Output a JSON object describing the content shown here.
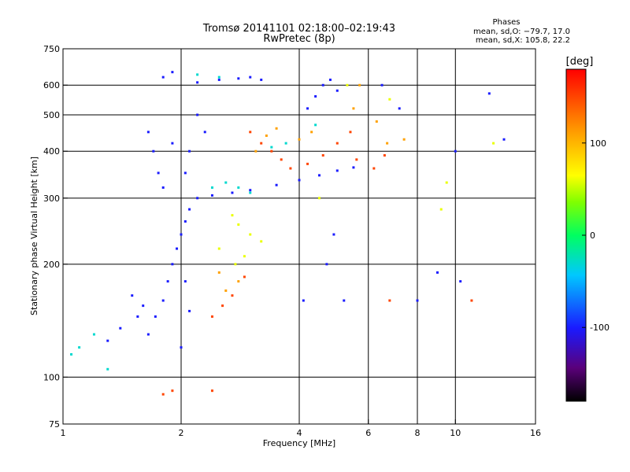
{
  "chart_data": {
    "type": "scatter",
    "title": "Tromsø 20141101 02:18:00–02:19:43",
    "subtitle": "RwPretec (8p)",
    "xlabel": "Frequency [MHz]",
    "ylabel": "Stationary phase Virtual Height [km]",
    "x_scale": "log",
    "y_scale": "log",
    "xlim": [
      1,
      16
    ],
    "ylim": [
      75,
      750
    ],
    "x_ticks": [
      1,
      2,
      4,
      6,
      8,
      10,
      16
    ],
    "y_ticks": [
      75,
      100,
      200,
      300,
      400,
      500,
      600,
      750
    ],
    "x_gridlines": [
      2,
      4,
      6,
      8,
      10
    ],
    "y_gridlines": [
      100,
      200,
      300,
      400,
      500,
      600
    ],
    "grid": true,
    "phases_box": {
      "heading": "Phases",
      "line_o": "mean, sd,O: −79.7, 17.0",
      "line_x": "mean, sd,X: 105.8, 22.2"
    },
    "colorbar": {
      "label": "[deg]",
      "range": [
        -180,
        180
      ],
      "ticks": [
        100,
        0,
        -100
      ],
      "colormap": "rainbow (black → purple → blue → cyan → green → yellow → orange → red)"
    },
    "series": [
      {
        "phase_deg": -100,
        "points": [
          [
            1.65,
            130
          ],
          [
            1.72,
            145
          ],
          [
            1.8,
            160
          ],
          [
            1.85,
            180
          ],
          [
            1.9,
            200
          ],
          [
            1.95,
            220
          ],
          [
            2.0,
            240
          ],
          [
            2.05,
            260
          ],
          [
            2.1,
            280
          ],
          [
            2.2,
            300
          ],
          [
            2.4,
            305
          ],
          [
            2.7,
            310
          ],
          [
            3.0,
            315
          ],
          [
            3.5,
            325
          ],
          [
            4.0,
            335
          ],
          [
            4.5,
            345
          ],
          [
            5.0,
            355
          ],
          [
            5.5,
            362
          ],
          [
            1.65,
            450
          ],
          [
            1.7,
            400
          ],
          [
            1.75,
            350
          ],
          [
            1.8,
            320
          ],
          [
            1.9,
            420
          ],
          [
            2.05,
            350
          ],
          [
            2.1,
            400
          ],
          [
            2.2,
            500
          ],
          [
            2.3,
            450
          ],
          [
            1.8,
            630
          ],
          [
            1.9,
            650
          ],
          [
            2.2,
            610
          ],
          [
            2.5,
            620
          ],
          [
            2.8,
            625
          ],
          [
            3.0,
            630
          ],
          [
            3.2,
            620
          ],
          [
            4.2,
            520
          ],
          [
            4.4,
            560
          ],
          [
            4.6,
            600
          ],
          [
            4.8,
            620
          ],
          [
            5.0,
            580
          ],
          [
            6.5,
            600
          ],
          [
            7.2,
            520
          ],
          [
            2.0,
            120
          ],
          [
            2.1,
            150
          ],
          [
            2.05,
            180
          ],
          [
            1.5,
            165
          ],
          [
            4.9,
            240
          ],
          [
            5.2,
            160
          ],
          [
            4.1,
            160
          ],
          [
            4.7,
            200
          ],
          [
            1.3,
            125
          ],
          [
            1.4,
            135
          ],
          [
            1.55,
            145
          ],
          [
            1.6,
            155
          ],
          [
            8.0,
            160
          ],
          [
            9.0,
            190
          ],
          [
            10.0,
            400
          ],
          [
            10.3,
            180
          ],
          [
            12.2,
            570
          ],
          [
            13.3,
            430
          ]
        ]
      },
      {
        "phase_deg": -30,
        "points": [
          [
            1.05,
            115
          ],
          [
            1.1,
            120
          ],
          [
            1.2,
            130
          ],
          [
            1.3,
            105
          ],
          [
            2.4,
            320
          ],
          [
            2.6,
            330
          ],
          [
            2.8,
            320
          ],
          [
            3.0,
            310
          ],
          [
            2.2,
            640
          ],
          [
            2.5,
            630
          ],
          [
            3.4,
            410
          ],
          [
            3.7,
            420
          ],
          [
            4.4,
            470
          ]
        ]
      },
      {
        "phase_deg": 60,
        "points": [
          [
            2.7,
            270
          ],
          [
            2.8,
            255
          ],
          [
            3.0,
            240
          ],
          [
            3.2,
            230
          ],
          [
            2.5,
            220
          ],
          [
            2.75,
            200
          ],
          [
            2.9,
            210
          ],
          [
            4.5,
            300
          ],
          [
            5.3,
            600
          ],
          [
            6.8,
            550
          ],
          [
            9.2,
            280
          ],
          [
            9.5,
            330
          ],
          [
            12.5,
            420
          ]
        ]
      },
      {
        "phase_deg": 110,
        "points": [
          [
            2.5,
            190
          ],
          [
            2.6,
            170
          ],
          [
            2.8,
            180
          ],
          [
            3.1,
            400
          ],
          [
            3.3,
            440
          ],
          [
            3.5,
            460
          ],
          [
            4.0,
            430
          ],
          [
            4.3,
            450
          ],
          [
            5.5,
            520
          ],
          [
            5.7,
            600
          ],
          [
            6.3,
            480
          ],
          [
            6.7,
            420
          ],
          [
            7.4,
            430
          ]
        ]
      },
      {
        "phase_deg": 150,
        "points": [
          [
            2.4,
            145
          ],
          [
            2.55,
            155
          ],
          [
            2.7,
            165
          ],
          [
            2.9,
            185
          ],
          [
            3.0,
            450
          ],
          [
            3.2,
            420
          ],
          [
            3.4,
            400
          ],
          [
            3.6,
            380
          ],
          [
            3.8,
            360
          ],
          [
            4.2,
            370
          ],
          [
            4.6,
            390
          ],
          [
            5.0,
            420
          ],
          [
            5.4,
            450
          ],
          [
            5.6,
            380
          ],
          [
            6.2,
            360
          ],
          [
            6.6,
            390
          ],
          [
            1.8,
            90
          ],
          [
            1.9,
            92
          ],
          [
            2.4,
            92
          ],
          [
            6.8,
            160
          ],
          [
            11.0,
            160
          ]
        ]
      }
    ]
  }
}
